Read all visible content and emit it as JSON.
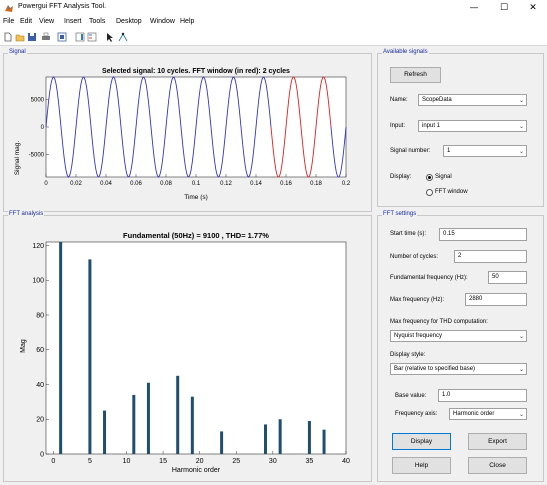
{
  "window": {
    "title": "Powergui FFT Analysis Tool.",
    "minimize_glyph": "—",
    "maximize_glyph": "☐",
    "close_glyph": "✕"
  },
  "menu": [
    "File",
    "Edit",
    "View",
    "Insert",
    "Tools",
    "Desktop",
    "Window",
    "Help"
  ],
  "toolbar_icons": [
    "new-file-icon",
    "open-folder-icon",
    "save-icon",
    "print-icon",
    "print-preview-icon",
    "insert-colorbar-icon",
    "insert-legend-icon",
    "arrow-pointer-icon",
    "data-cursor-icon"
  ],
  "signal_panel": {
    "title": "Signal"
  },
  "fft_panel": {
    "title": "FFT analysis"
  },
  "available_signals": {
    "title": "Available signals",
    "refresh_label": "Refresh",
    "name_label": "Name:",
    "name_value": "ScopeData",
    "input_label": "Input:",
    "input_value": "input 1",
    "signal_number_label": "Signal number:",
    "signal_number_value": "1",
    "display_label": "Display:",
    "display_signal": "Signal",
    "display_fft_window": "FFT window",
    "display_selected": "Signal"
  },
  "fft_settings": {
    "title": "FFT settings",
    "start_time_label": "Start time (s):",
    "start_time_value": "0.15",
    "cycles_label": "Number of cycles:",
    "cycles_value": "2",
    "fund_freq_label": "Fundamental frequency (Hz):",
    "fund_freq_value": "50",
    "max_freq_label": "Max frequency (Hz):",
    "max_freq_value": "2880",
    "thd_max_freq_label": "Max frequency for THD computation:",
    "thd_max_freq_value": "Nyquist frequency",
    "display_style_label": "Display style:",
    "display_style_value": "Bar (relative to specified base)",
    "base_value_label": "Base value:",
    "base_value": "1.0",
    "freq_axis_label": "Frequency axis:",
    "freq_axis_value": "Harmonic order"
  },
  "buttons": {
    "display": "Display",
    "export": "Export",
    "help": "Help",
    "close": "Close"
  },
  "colors": {
    "signal_blue": "#3333cc",
    "window_red": "#e02020",
    "bar_color": "#1f4e6e",
    "panel_title": "#1a2a9a"
  },
  "chart_data": [
    {
      "type": "line",
      "title": "Selected signal: 10 cycles. FFT window (in red): 2 cycles",
      "xlabel": "Time (s)",
      "ylabel": "Signal mag.",
      "xlim": [
        0,
        0.2
      ],
      "ylim": [
        -9100,
        9100
      ],
      "xticks": [
        0,
        0.02,
        0.04,
        0.06,
        0.08,
        0.1,
        0.12,
        0.14,
        0.16,
        0.18,
        0.2
      ],
      "xtick_labels": [
        "0",
        "0.02",
        "0.04",
        "0.06",
        "0.08",
        "0.1",
        "0.12",
        "0.14",
        "0.16",
        "0.18",
        "0.2"
      ],
      "yticks": [
        -5000,
        0,
        5000
      ],
      "ytick_labels": [
        "-5000",
        "0",
        "5000"
      ],
      "series": [
        {
          "amplitude": 9100,
          "frequency_hz": 50,
          "t_start": 0,
          "t_end": 0.15,
          "color": "#3333cc"
        },
        {
          "amplitude": 9100,
          "frequency_hz": 50,
          "t_start": 0.15,
          "t_end": 0.19,
          "color": "#e02020"
        },
        {
          "amplitude": 9100,
          "frequency_hz": 50,
          "t_start": 0.19,
          "t_end": 0.2,
          "color": "#3333cc"
        }
      ],
      "grid": false
    },
    {
      "type": "bar",
      "title": "Fundamental (50Hz) = 9100 , THD= 1.77%",
      "xlabel": "Harmonic order",
      "ylabel": "Mag",
      "xlim": [
        -1,
        40
      ],
      "ylim": [
        0,
        122
      ],
      "xticks": [
        0,
        5,
        10,
        15,
        20,
        25,
        30,
        35,
        40
      ],
      "yticks": [
        0,
        20,
        40,
        60,
        80,
        100,
        120
      ],
      "x": [
        1,
        5,
        7,
        11,
        13,
        17,
        19,
        23,
        29,
        31,
        35,
        37
      ],
      "values": [
        122,
        112,
        25,
        34,
        41,
        45,
        33,
        13,
        17,
        20,
        19,
        14
      ],
      "grid": false
    }
  ]
}
